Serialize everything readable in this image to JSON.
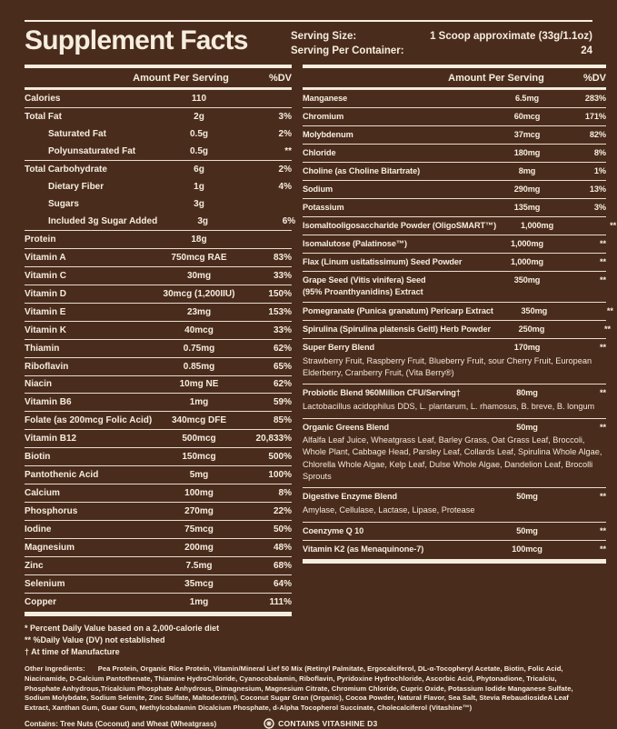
{
  "title": "Supplement Facts",
  "serving": {
    "size_label": "Serving Size:",
    "size_value": "1 Scoop approximate (33g/1.1oz)",
    "container_label": "Serving Per Container:",
    "container_value": "24"
  },
  "columns": {
    "amount": "Amount Per Serving",
    "dv": "%DV"
  },
  "left_rows": [
    {
      "name": "Calories",
      "amount": "110",
      "dv": ""
    },
    {
      "name": "Total Fat",
      "amount": "2g",
      "dv": "3%"
    },
    {
      "name": "Saturated Fat",
      "amount": "0.5g",
      "dv": "2%",
      "indent": true
    },
    {
      "name": "Polyunsaturated Fat",
      "amount": "0.5g",
      "dv": "**",
      "indent": true
    },
    {
      "name": "Total Carbohydrate",
      "amount": "6g",
      "dv": "2%"
    },
    {
      "name": "Dietary Fiber",
      "amount": "1g",
      "dv": "4%",
      "indent": true
    },
    {
      "name": "Sugars",
      "amount": "3g",
      "dv": "",
      "indent": true
    },
    {
      "name": "Included 3g Sugar Added",
      "amount": "3g",
      "dv": "6%",
      "indent": true
    },
    {
      "name": "Protein",
      "amount": "18g",
      "dv": ""
    },
    {
      "name": "Vitamin A",
      "amount": "750mcg RAE",
      "dv": "83%"
    },
    {
      "name": "Vitamin C",
      "amount": "30mg",
      "dv": "33%"
    },
    {
      "name": "Vitamin D",
      "amount": "30mcg (1,200IIU)",
      "dv": "150%"
    },
    {
      "name": "Vitamin E",
      "amount": "23mg",
      "dv": "153%"
    },
    {
      "name": "Vitamin K",
      "amount": "40mcg",
      "dv": "33%"
    },
    {
      "name": "Thiamin",
      "amount": "0.75mg",
      "dv": "62%"
    },
    {
      "name": "Riboflavin",
      "amount": "0.85mg",
      "dv": "65%"
    },
    {
      "name": "Niacin",
      "amount": "10mg NE",
      "dv": "62%"
    },
    {
      "name": "Vitamin B6",
      "amount": "1mg",
      "dv": "59%"
    },
    {
      "name": "Folate (as 200mcg Folic Acid)",
      "amount": "340mcg DFE",
      "dv": "85%"
    },
    {
      "name": "Vitamin B12",
      "amount": "500mcg",
      "dv": "20,833%"
    },
    {
      "name": "Biotin",
      "amount": "150mcg",
      "dv": "500%"
    },
    {
      "name": "Pantothenic Acid",
      "amount": "5mg",
      "dv": "100%"
    },
    {
      "name": "Calcium",
      "amount": "100mg",
      "dv": "8%"
    },
    {
      "name": "Phosphorus",
      "amount": "270mg",
      "dv": "22%"
    },
    {
      "name": "Iodine",
      "amount": "75mcg",
      "dv": "50%"
    },
    {
      "name": "Magnesium",
      "amount": "200mg",
      "dv": "48%"
    },
    {
      "name": "Zinc",
      "amount": "7.5mg",
      "dv": "68%"
    },
    {
      "name": "Selenium",
      "amount": "35mcg",
      "dv": "64%"
    },
    {
      "name": "Copper",
      "amount": "1mg",
      "dv": "111%"
    }
  ],
  "right_rows": [
    {
      "name": "Manganese",
      "amount": "6.5mg",
      "dv": "283%"
    },
    {
      "name": "Chromium",
      "amount": "60mcg",
      "dv": "171%"
    },
    {
      "name": "Molybdenum",
      "amount": "37mcg",
      "dv": "82%"
    },
    {
      "name": "Chloride",
      "amount": "180mg",
      "dv": "8%"
    },
    {
      "name": "Choline (as Choline Bitartrate)",
      "amount": "8mg",
      "dv": "1%"
    },
    {
      "name": "Sodium",
      "amount": "290mg",
      "dv": "13%"
    },
    {
      "name": "Potassium",
      "amount": "135mg",
      "dv": "3%"
    },
    {
      "name": "Isomaltooligosaccharide Powder (OligoSMART™)",
      "amount": "1,000mg",
      "dv": "**"
    },
    {
      "name": "Isomalutose (Palatinose™)",
      "amount": "1,000mg",
      "dv": "**"
    },
    {
      "name": "Flax (Linum usitatissimum) Seed Powder",
      "amount": "1,000mg",
      "dv": "**"
    },
    {
      "name": "Grape Seed (Vitis vinifera) Seed",
      "name2": "(95% Proanthyanidins) Extract",
      "amount": "350mg",
      "dv": "**"
    },
    {
      "name": "Pomegranate (Punica granatum) Pericarp Extract",
      "amount": "350mg",
      "dv": "**"
    },
    {
      "name": "Spirulina (Spirulina platensis Geitl) Herb Powder",
      "amount": "250mg",
      "dv": "**"
    },
    {
      "name": "Super Berry Blend",
      "amount": "170mg",
      "dv": "**",
      "sub": "Strawberry Fruit, Raspberry Fruit, Blueberry Fruit, sour Cherry Fruit, European Elderberry, Cranberry Fruit, (Vita Berry®)"
    },
    {
      "name": "Probiotic Blend 960Million CFU/Serving†",
      "amount": "80mg",
      "dv": "**",
      "sub": "Lactobacillus acidophilus DDS, L. plantarum, L. rhamosus, B. breve, B. longum"
    },
    {
      "name": "Organic Greens Blend",
      "amount": "50mg",
      "dv": "**",
      "sub": "Alfalfa Leaf Juice, Wheatgrass Leaf, Barley Grass, Oat Grass Leaf, Broccoli, Whole Plant, Cabbage Head, Parsley Leaf, Collards Leaf, Spirulina Whole Algae, Chlorella Whole Algae, Kelp Leaf, Dulse Whole Algae, Dandelion Leaf, Brocolli Sprouts"
    },
    {
      "name": "Digestive Enzyme Blend",
      "amount": "50mg",
      "dv": "**",
      "sub": "Amylase, Cellulase, Lactase, Lipase, Protease"
    },
    {
      "name": "Coenzyme Q 10",
      "amount": "50mg",
      "dv": "**"
    },
    {
      "name": "Vitamin K2 (as Menaquinone-7)",
      "amount": "100mcg",
      "dv": "**"
    }
  ],
  "footnotes": [
    "* Percent Daily Value based on a 2,000-calorie diet",
    "** %Daily Value (DV) not established",
    "† At time of Manufacture"
  ],
  "other_ingredients_label": "Other Ingredients:",
  "other_ingredients_text": "Pea Protein, Organic Rice Protein, Vitamin/Mineral Lief 50 Mix (Retinyl Palmitate, Ergocalciferol, DL-α-Tocopheryl Acetate, Biotin, Folic Acid, Niacinamide, D-Calcium Pantothenate, Thiamine HydroChloride, Cyanocobalamin, Riboflavin, Pyridoxine Hydrochloride, Ascorbic Acid, Phytonadione, Tricalciu, Phosphate Anhydrous,Tricalcium Phosphate Anhydrous, Dimagnesium, Magnesium Citrate, Chromium Chloride, Cupric Oxide, Potassium Iodide Manganese Sulfate, Sodium Molybdate, Sodium Selenite, Zinc Sulfate, Maltodextrin), Coconut Sugar Gran (Organic), Cocoa Powder, Natural Flavor, Sea Salt, Stevia RebaudiosideA Leaf Extract, Xanthan Gum, Guar Gum, Methylcobalamin Dicalcium Phosphate, d-Alpha Tocopherol Succinate, Cholecalciferol (Vitashine™)",
  "contains_statement": "Contains: Tree Nuts (Coconut) and Wheat (Wheatgrass)",
  "badge_label": "CONTAINS VITASHINE D3",
  "colors": {
    "background": "#4a2c1d",
    "text": "#f5edde"
  }
}
